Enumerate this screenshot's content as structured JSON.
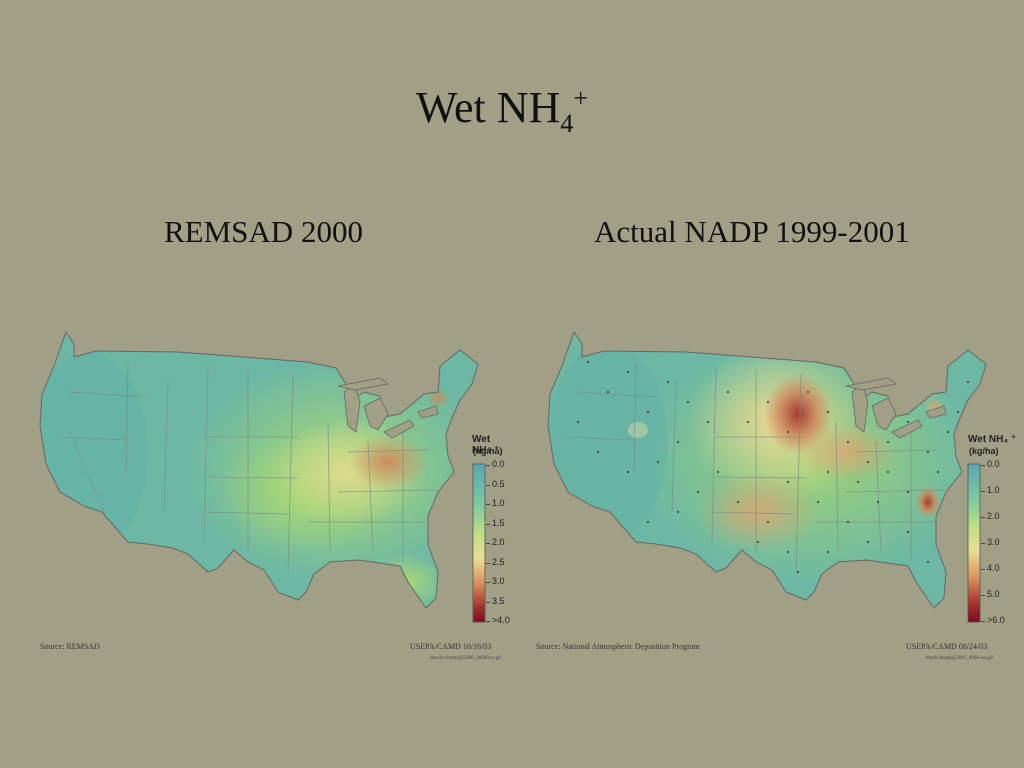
{
  "slide": {
    "title_main": "Wet NH",
    "title_sub": "4",
    "title_sup": "+"
  },
  "left": {
    "heading": "REMSAD 2000",
    "legend_title": "Wet NH₄ ⁺",
    "legend_unit": "(kg/ha)",
    "ticks": [
      "0.0",
      "0.5",
      "1.0",
      "1.5",
      "2.0",
      "2.5",
      "3.0",
      "3.5",
      ">4.0"
    ],
    "source": "Source: REMSAD",
    "agency": "USEPA/CAMD 10/16/03",
    "filename": "dmsdcv/remsd@2000_d0000-sv.gif"
  },
  "right": {
    "heading": "Actual NADP 1999-2001",
    "legend_title": "Wet NH₄ ⁺",
    "legend_unit": "(kg/ha)",
    "ticks": [
      "0.0",
      "1.0",
      "2.0",
      "3.0",
      "4.0",
      "5.0",
      ">6.0"
    ],
    "source": "Source: National Atmospheric Deposition Program",
    "agency": "USEPA/CAMD 08/24/03",
    "filename": "thndvcdnadp@2001_d000-ws.gif"
  },
  "colors": {
    "background": "#a19f86",
    "low": "#5fb4a6",
    "mid_low": "#9dd172",
    "mid": "#e9dd95",
    "mid_high": "#d9a16a",
    "high": "#a8342c",
    "max": "#7a0d26"
  }
}
